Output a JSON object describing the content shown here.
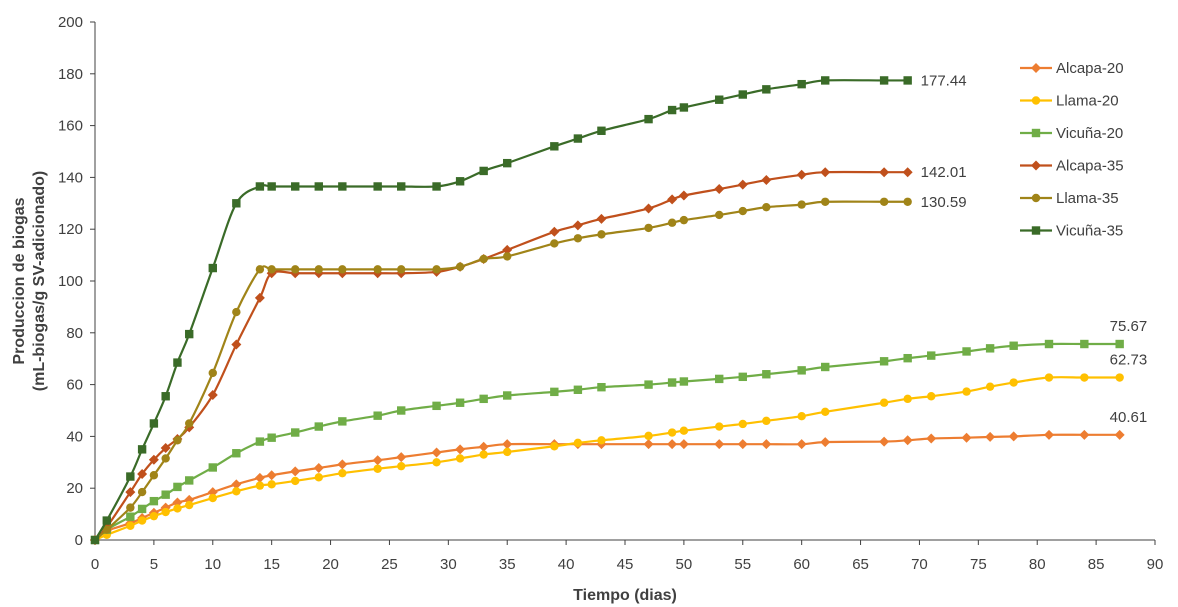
{
  "chart_data": {
    "type": "line",
    "title": "",
    "xlabel": "Tiempo (dias)",
    "ylabel": "Produccion de biogas (mL-biogas/g SV-adicionado)",
    "ylabel_lines": [
      "Produccion de biogas",
      "(mL-biogas/g SV-adicionado)"
    ],
    "xlim": [
      0,
      90
    ],
    "ylim": [
      0,
      200
    ],
    "xticks": [
      0,
      5,
      10,
      15,
      20,
      25,
      30,
      35,
      40,
      45,
      50,
      55,
      60,
      65,
      70,
      75,
      80,
      85,
      90
    ],
    "yticks": [
      0,
      20,
      40,
      60,
      80,
      100,
      120,
      140,
      160,
      180,
      200
    ],
    "grid": false,
    "legend_position": "right",
    "series": [
      {
        "name": "Alcapa-20",
        "color": "#ED7D31",
        "marker": "diamond",
        "end_label": "40.61",
        "points": [
          [
            0,
            0
          ],
          [
            1,
            3.5
          ],
          [
            3,
            6.5
          ],
          [
            4,
            8.5
          ],
          [
            5,
            10.5
          ],
          [
            6,
            12.5
          ],
          [
            7,
            14.5
          ],
          [
            8,
            15.5
          ],
          [
            10,
            18.5
          ],
          [
            12,
            21.5
          ],
          [
            14,
            24
          ],
          [
            15,
            25
          ],
          [
            17,
            26.5
          ],
          [
            19,
            27.8
          ],
          [
            21,
            29.2
          ],
          [
            24,
            30.8
          ],
          [
            26,
            32
          ],
          [
            29,
            33.8
          ],
          [
            31,
            35
          ],
          [
            33,
            36
          ],
          [
            35,
            37
          ],
          [
            39,
            37
          ],
          [
            41,
            37
          ],
          [
            43,
            37
          ],
          [
            47,
            37
          ],
          [
            49,
            37
          ],
          [
            50,
            37
          ],
          [
            53,
            37
          ],
          [
            55,
            37
          ],
          [
            57,
            37
          ],
          [
            60,
            37
          ],
          [
            62,
            37.8
          ],
          [
            67,
            38
          ],
          [
            69,
            38.5
          ],
          [
            71,
            39.2
          ],
          [
            74,
            39.5
          ],
          [
            76,
            39.8
          ],
          [
            78,
            40
          ],
          [
            81,
            40.61
          ],
          [
            84,
            40.61
          ],
          [
            87,
            40.61
          ]
        ]
      },
      {
        "name": "Llama-20",
        "color": "#FFC000",
        "marker": "circle",
        "end_label": "62.73",
        "points": [
          [
            0,
            0
          ],
          [
            1,
            2
          ],
          [
            3,
            5.5
          ],
          [
            4,
            7.5
          ],
          [
            5,
            9.2
          ],
          [
            6,
            10.8
          ],
          [
            7,
            12.2
          ],
          [
            8,
            13.5
          ],
          [
            10,
            16.2
          ],
          [
            12,
            18.8
          ],
          [
            14,
            21
          ],
          [
            15,
            21.5
          ],
          [
            17,
            22.8
          ],
          [
            19,
            24.2
          ],
          [
            21,
            25.8
          ],
          [
            24,
            27.5
          ],
          [
            26,
            28.5
          ],
          [
            29,
            30
          ],
          [
            31,
            31.5
          ],
          [
            33,
            33
          ],
          [
            35,
            34
          ],
          [
            39,
            36.2
          ],
          [
            41,
            37.5
          ],
          [
            43,
            38.5
          ],
          [
            47,
            40.2
          ],
          [
            49,
            41.5
          ],
          [
            50,
            42.2
          ],
          [
            53,
            43.8
          ],
          [
            55,
            44.8
          ],
          [
            57,
            46
          ],
          [
            60,
            47.8
          ],
          [
            62,
            49.5
          ],
          [
            67,
            53
          ],
          [
            69,
            54.5
          ],
          [
            71,
            55.5
          ],
          [
            74,
            57.3
          ],
          [
            76,
            59.2
          ],
          [
            78,
            60.8
          ],
          [
            81,
            62.73
          ],
          [
            84,
            62.73
          ],
          [
            87,
            62.73
          ]
        ]
      },
      {
        "name": "Vicuña-20",
        "color": "#70AD47",
        "marker": "square",
        "end_label": "75.67",
        "points": [
          [
            0,
            0
          ],
          [
            1,
            4
          ],
          [
            3,
            9
          ],
          [
            4,
            12
          ],
          [
            5,
            15
          ],
          [
            6,
            17.5
          ],
          [
            7,
            20.5
          ],
          [
            8,
            23
          ],
          [
            10,
            28
          ],
          [
            12,
            33.5
          ],
          [
            14,
            38
          ],
          [
            15,
            39.5
          ],
          [
            17,
            41.5
          ],
          [
            19,
            43.8
          ],
          [
            21,
            45.8
          ],
          [
            24,
            48
          ],
          [
            26,
            50
          ],
          [
            29,
            51.8
          ],
          [
            31,
            53
          ],
          [
            33,
            54.5
          ],
          [
            35,
            55.8
          ],
          [
            39,
            57.2
          ],
          [
            41,
            58
          ],
          [
            43,
            59
          ],
          [
            47,
            60
          ],
          [
            49,
            60.8
          ],
          [
            50,
            61.2
          ],
          [
            53,
            62.2
          ],
          [
            55,
            63
          ],
          [
            57,
            64
          ],
          [
            60,
            65.5
          ],
          [
            62,
            66.8
          ],
          [
            67,
            69
          ],
          [
            69,
            70.2
          ],
          [
            71,
            71.2
          ],
          [
            74,
            72.8
          ],
          [
            76,
            74
          ],
          [
            78,
            75
          ],
          [
            81,
            75.67
          ],
          [
            84,
            75.67
          ],
          [
            87,
            75.67
          ]
        ]
      },
      {
        "name": "Alcapa-35",
        "color": "#C0501C",
        "marker": "diamond",
        "end_label": "142.01",
        "points": [
          [
            0,
            0
          ],
          [
            1,
            5
          ],
          [
            3,
            18.5
          ],
          [
            4,
            25.5
          ],
          [
            5,
            31
          ],
          [
            6,
            35.5
          ],
          [
            7,
            39
          ],
          [
            8,
            43.5
          ],
          [
            10,
            56
          ],
          [
            12,
            75.5
          ],
          [
            14,
            93.5
          ],
          [
            15,
            103
          ],
          [
            17,
            103
          ],
          [
            19,
            103
          ],
          [
            21,
            103
          ],
          [
            24,
            103
          ],
          [
            26,
            103
          ],
          [
            29,
            103.5
          ],
          [
            31,
            105.5
          ],
          [
            33,
            108.5
          ],
          [
            35,
            112
          ],
          [
            39,
            119
          ],
          [
            41,
            121.5
          ],
          [
            43,
            124
          ],
          [
            47,
            128
          ],
          [
            49,
            131.5
          ],
          [
            50,
            133
          ],
          [
            53,
            135.5
          ],
          [
            55,
            137.2
          ],
          [
            57,
            139
          ],
          [
            60,
            141
          ],
          [
            62,
            142.01
          ],
          [
            67,
            142.01
          ],
          [
            69,
            142.01
          ]
        ]
      },
      {
        "name": "Llama-35",
        "color": "#A08418",
        "marker": "circle",
        "end_label": "130.59",
        "points": [
          [
            0,
            0
          ],
          [
            1,
            4
          ],
          [
            3,
            12.5
          ],
          [
            4,
            18.5
          ],
          [
            5,
            25
          ],
          [
            6,
            31.5
          ],
          [
            7,
            38.5
          ],
          [
            8,
            45
          ],
          [
            10,
            64.5
          ],
          [
            12,
            88
          ],
          [
            14,
            104.5
          ],
          [
            15,
            104.5
          ],
          [
            17,
            104.5
          ],
          [
            19,
            104.5
          ],
          [
            21,
            104.5
          ],
          [
            24,
            104.5
          ],
          [
            26,
            104.5
          ],
          [
            29,
            104.5
          ],
          [
            31,
            105.5
          ],
          [
            33,
            108.5
          ],
          [
            35,
            109.5
          ],
          [
            39,
            114.5
          ],
          [
            41,
            116.5
          ],
          [
            43,
            118
          ],
          [
            47,
            120.5
          ],
          [
            49,
            122.5
          ],
          [
            50,
            123.5
          ],
          [
            53,
            125.5
          ],
          [
            55,
            127
          ],
          [
            57,
            128.5
          ],
          [
            60,
            129.5
          ],
          [
            62,
            130.59
          ],
          [
            67,
            130.59
          ],
          [
            69,
            130.59
          ]
        ]
      },
      {
        "name": "Vicuña-35",
        "color": "#3A6B28",
        "marker": "square",
        "end_label": "177.44",
        "points": [
          [
            0,
            0
          ],
          [
            1,
            7.5
          ],
          [
            3,
            24.5
          ],
          [
            4,
            35
          ],
          [
            5,
            45
          ],
          [
            6,
            55.5
          ],
          [
            7,
            68.5
          ],
          [
            8,
            79.5
          ],
          [
            10,
            105
          ],
          [
            12,
            130
          ],
          [
            14,
            136.5
          ],
          [
            15,
            136.5
          ],
          [
            17,
            136.5
          ],
          [
            19,
            136.5
          ],
          [
            21,
            136.5
          ],
          [
            24,
            136.5
          ],
          [
            26,
            136.5
          ],
          [
            29,
            136.5
          ],
          [
            31,
            138.5
          ],
          [
            33,
            142.5
          ],
          [
            35,
            145.5
          ],
          [
            39,
            152
          ],
          [
            41,
            155
          ],
          [
            43,
            158
          ],
          [
            47,
            162.5
          ],
          [
            49,
            166
          ],
          [
            50,
            167
          ],
          [
            53,
            170
          ],
          [
            55,
            172
          ],
          [
            57,
            174
          ],
          [
            60,
            176
          ],
          [
            62,
            177.44
          ],
          [
            67,
            177.44
          ],
          [
            69,
            177.44
          ]
        ]
      }
    ]
  }
}
